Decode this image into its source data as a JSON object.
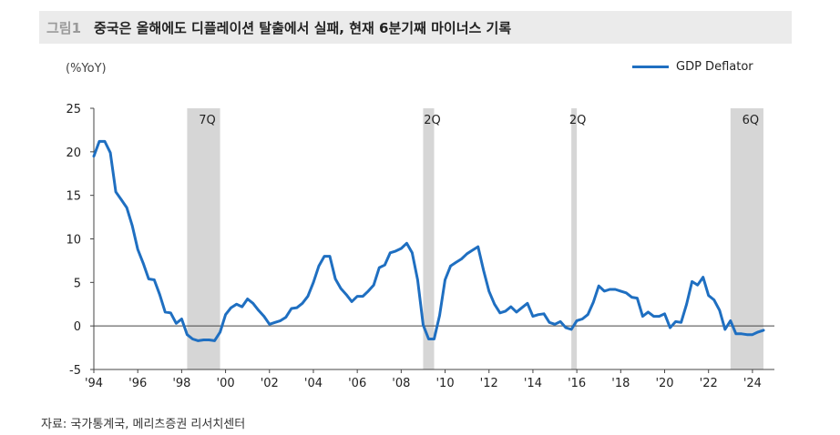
{
  "header": {
    "figure_label": "그림1",
    "title": "중국은 올해에도 디플레이션 탈출에서 실패, 현재 6분기째 마이너스 기록"
  },
  "unit_label": "(%YoY)",
  "source": "자료: 국가통계국, 메리츠증권 리서치센터",
  "colors": {
    "series": "#1f6fc1",
    "band": "#d6d6d6",
    "axis": "#444444"
  },
  "chart_data": {
    "type": "line",
    "ylim": [
      -5,
      25
    ],
    "y_ticks": [
      "25",
      "20",
      "15",
      "10",
      "5",
      "0",
      "-5"
    ],
    "y_tick_values": [
      25,
      20,
      15,
      10,
      5,
      0,
      -5
    ],
    "xlim": [
      1994.0,
      2025.0
    ],
    "x_tick_labels": [
      "'94",
      "'96",
      "'98",
      "'00",
      "'02",
      "'04",
      "'06",
      "'08",
      "'10",
      "'12",
      "'14",
      "'16",
      "'18",
      "'20",
      "'22",
      "'24"
    ],
    "x_tick_values": [
      1994,
      1996,
      1998,
      2000,
      2002,
      2004,
      2006,
      2008,
      2010,
      2012,
      2014,
      2016,
      2018,
      2020,
      2022,
      2024
    ],
    "legend": {
      "position": "top-right",
      "entries": [
        "GDP Deflator"
      ]
    },
    "shaded_periods": [
      {
        "start": 1998.25,
        "end": 1999.75,
        "label": "7Q"
      },
      {
        "start": 2009.0,
        "end": 2009.5,
        "label": "2Q"
      },
      {
        "start": 2015.75,
        "end": 2016.0,
        "label": "2Q"
      },
      {
        "start": 2023.0,
        "end": 2024.5,
        "label": "6Q"
      }
    ],
    "series": [
      {
        "name": "GDP Deflator",
        "x": [
          1994.0,
          1994.25,
          1994.5,
          1994.75,
          1995.0,
          1995.25,
          1995.5,
          1995.75,
          1996.0,
          1996.25,
          1996.5,
          1996.75,
          1997.0,
          1997.25,
          1997.5,
          1997.75,
          1998.0,
          1998.25,
          1998.5,
          1998.75,
          1999.0,
          1999.25,
          1999.5,
          1999.75,
          2000.0,
          2000.25,
          2000.5,
          2000.75,
          2001.0,
          2001.25,
          2001.5,
          2001.75,
          2002.0,
          2002.25,
          2002.5,
          2002.75,
          2003.0,
          2003.25,
          2003.5,
          2003.75,
          2004.0,
          2004.25,
          2004.5,
          2004.75,
          2005.0,
          2005.25,
          2005.5,
          2005.75,
          2006.0,
          2006.25,
          2006.5,
          2006.75,
          2007.0,
          2007.25,
          2007.5,
          2007.75,
          2008.0,
          2008.25,
          2008.5,
          2008.75,
          2009.0,
          2009.25,
          2009.5,
          2009.75,
          2010.0,
          2010.25,
          2010.5,
          2010.75,
          2011.0,
          2011.25,
          2011.5,
          2011.75,
          2012.0,
          2012.25,
          2012.5,
          2012.75,
          2013.0,
          2013.25,
          2013.5,
          2013.75,
          2014.0,
          2014.25,
          2014.5,
          2014.75,
          2015.0,
          2015.25,
          2015.5,
          2015.75,
          2016.0,
          2016.25,
          2016.5,
          2016.75,
          2017.0,
          2017.25,
          2017.5,
          2017.75,
          2018.0,
          2018.25,
          2018.5,
          2018.75,
          2019.0,
          2019.25,
          2019.5,
          2019.75,
          2020.0,
          2020.25,
          2020.5,
          2020.75,
          2021.0,
          2021.25,
          2021.5,
          2021.75,
          2022.0,
          2022.25,
          2022.5,
          2022.75,
          2023.0,
          2023.25,
          2023.5,
          2023.75,
          2024.0,
          2024.25,
          2024.5
        ],
        "values": [
          19.5,
          21.2,
          21.2,
          19.9,
          15.4,
          14.5,
          13.6,
          11.5,
          8.8,
          7.2,
          5.4,
          5.3,
          3.6,
          1.6,
          1.5,
          0.3,
          0.8,
          -1.0,
          -1.5,
          -1.7,
          -1.6,
          -1.6,
          -1.7,
          -0.7,
          1.3,
          2.1,
          2.5,
          2.2,
          3.1,
          2.6,
          1.8,
          1.1,
          0.2,
          0.4,
          0.6,
          1.0,
          2.0,
          2.1,
          2.6,
          3.4,
          5.0,
          6.9,
          8.0,
          8.0,
          5.4,
          4.3,
          3.6,
          2.8,
          3.4,
          3.4,
          4.0,
          4.7,
          6.7,
          7.0,
          8.4,
          8.6,
          8.9,
          9.5,
          8.4,
          5.3,
          0.1,
          -1.5,
          -1.5,
          1.2,
          5.3,
          6.9,
          7.3,
          7.7,
          8.3,
          8.7,
          9.1,
          6.4,
          4.0,
          2.5,
          1.5,
          1.7,
          2.2,
          1.6,
          2.1,
          2.6,
          1.1,
          1.3,
          1.4,
          0.4,
          0.2,
          0.5,
          -0.2,
          -0.4,
          0.6,
          0.8,
          1.3,
          2.7,
          4.6,
          4.0,
          4.2,
          4.2,
          4.0,
          3.8,
          3.3,
          3.2,
          1.1,
          1.6,
          1.1,
          1.1,
          1.4,
          -0.2,
          0.5,
          0.4,
          2.5,
          5.1,
          4.7,
          5.6,
          3.5,
          3.0,
          1.8,
          -0.4,
          0.6,
          -0.9,
          -0.9,
          -1.0,
          -1.0,
          -0.7,
          -0.5
        ]
      }
    ]
  }
}
